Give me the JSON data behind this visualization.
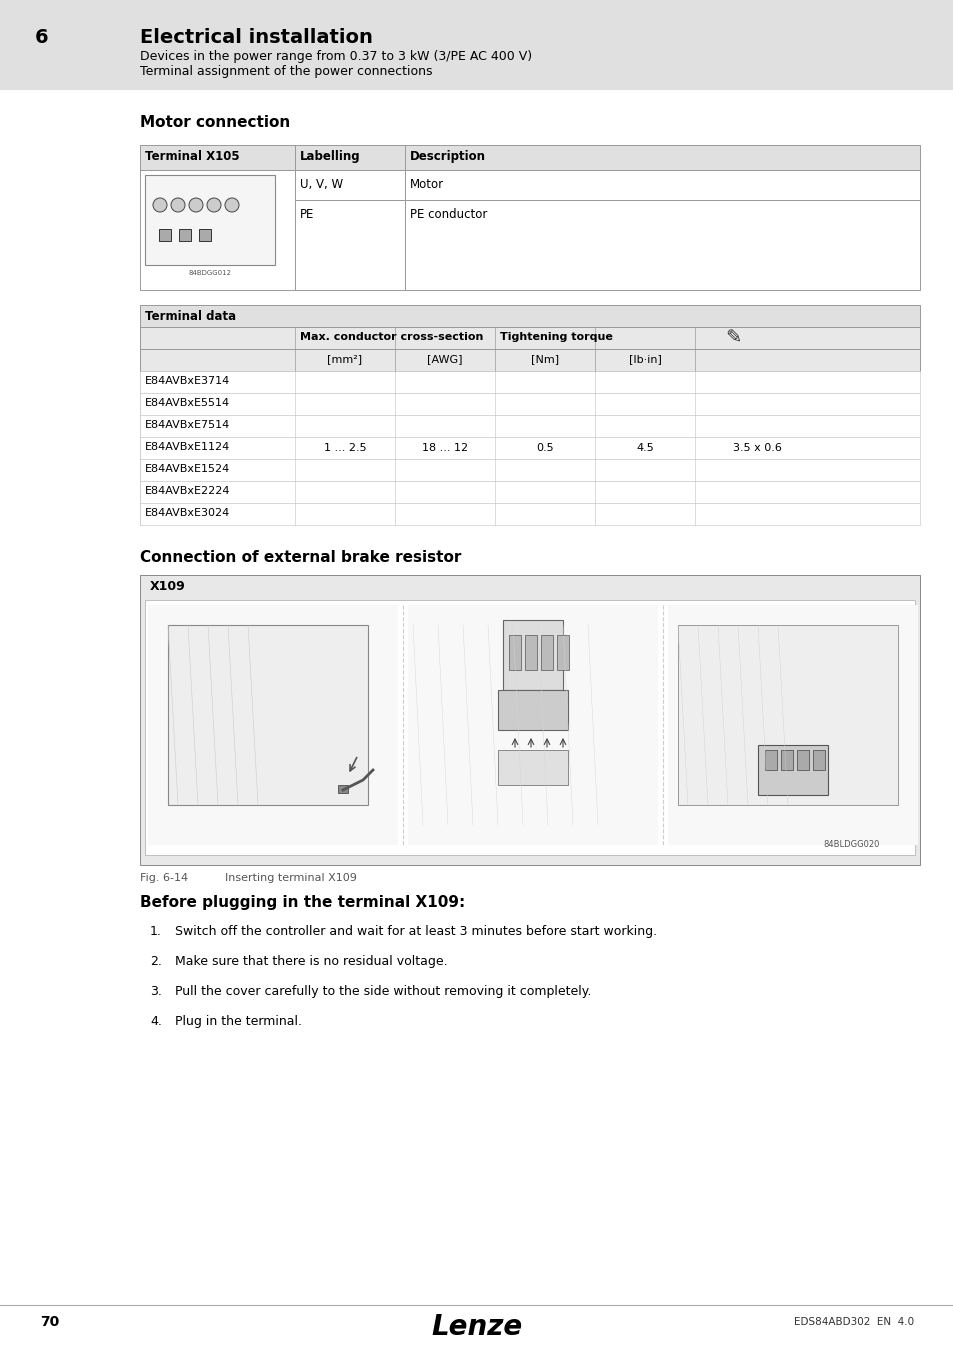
{
  "page_bg": "#f0f0f0",
  "white": "#ffffff",
  "light_gray": "#e8e8e8",
  "mid_gray": "#d0d0d0",
  "dark_gray": "#a0a0a0",
  "black": "#000000",
  "chapter_num": "6",
  "chapter_title": "Electrical installation",
  "subtitle1": "Devices in the power range from 0.37 to 3 kW (3/PE AC 400 V)",
  "subtitle2": "Terminal assignment of the power connections",
  "section1_title": "Motor connection",
  "table1_headers": [
    "Terminal X105",
    "Labelling",
    "Description"
  ],
  "table1_col1_label": "84BDGG012",
  "table1_rows": [
    [
      "",
      "U, V, W",
      "Motor"
    ],
    [
      "",
      "PE",
      "PE conductor"
    ]
  ],
  "section2_title": "Terminal data",
  "table2_col_headers1": [
    "",
    "Max. conductor cross-section",
    "",
    "Tightening torque",
    "",
    ""
  ],
  "table2_col_headers2": [
    "",
    "[mm²]",
    "[AWG]",
    "[Nm]",
    "[lb·in]",
    ""
  ],
  "table2_rows": [
    "E84AVBxE3714",
    "E84AVBxE5514",
    "E84AVBxE7514",
    "E84AVBxE1124",
    "E84AVBxE1524",
    "E84AVBxE2224",
    "E84AVBxE3024"
  ],
  "table2_values": {
    "mm2": "1 ... 2.5",
    "awg": "18 ... 12",
    "nm": "0.5",
    "lbin": "4.5",
    "screwdriver": "3.5 x 0.6"
  },
  "section3_title": "Connection of external brake resistor",
  "x109_label": "X109",
  "figure_label": "Fig. 6-14",
  "figure_caption": "Inserting terminal X109",
  "image_code": "84BLDGG020",
  "before_text": "Before plugging in the terminal X109:",
  "steps": [
    "Switch off the controller and wait for at least 3 minutes before start working.",
    "Make sure that there is no residual voltage.",
    "Pull the cover carefully to the side without removing it completely.",
    "Plug in the terminal."
  ],
  "footer_page": "70",
  "footer_brand": "Lenze",
  "footer_doc": "EDS84ABD302  EN  4.0"
}
